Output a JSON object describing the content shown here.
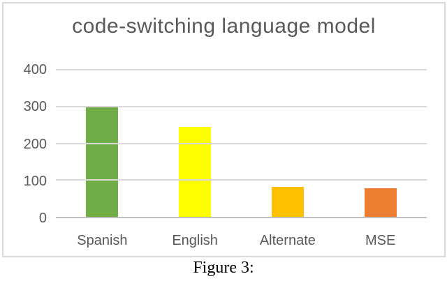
{
  "figure": {
    "caption": "Figure 3:"
  },
  "chart_data": {
    "type": "bar",
    "title": "code-switching language model",
    "categories": [
      "Spanish",
      "English",
      "Alternate",
      "MSE"
    ],
    "values": [
      300,
      245,
      82,
      78
    ],
    "bar_colors": [
      "#70AD47",
      "#FFFF00",
      "#FFC000",
      "#ED7D31"
    ],
    "xlabel": "",
    "ylabel": "",
    "ylim": [
      0,
      400
    ],
    "yticks": [
      0,
      100,
      200,
      300,
      400
    ],
    "grid": "horizontal",
    "legend": "none",
    "colors": {
      "title_text": "#595959",
      "tick_text": "#595959",
      "gridline": "#d9d9d9",
      "axis_line": "#bfbfbf",
      "frame_border": "#d9d9d9",
      "caption_text": "#000000",
      "background": "#ffffff"
    }
  }
}
